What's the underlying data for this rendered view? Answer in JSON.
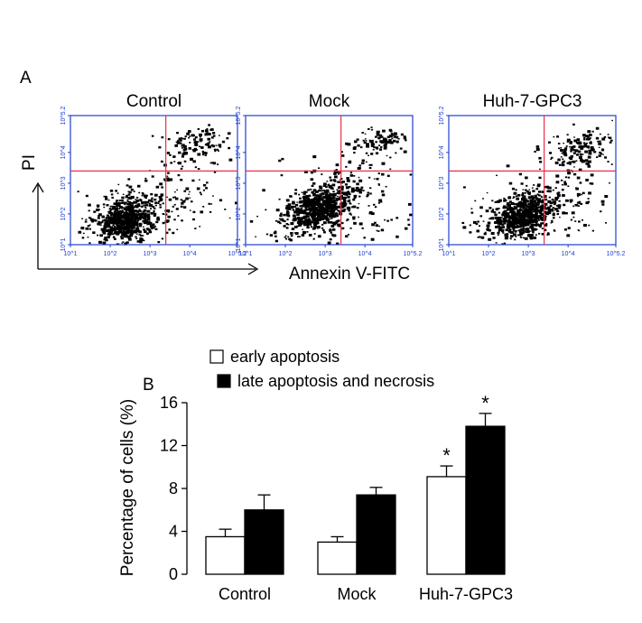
{
  "figure": {
    "panel_a_label": "A",
    "panel_b_label": "B",
    "flow_panels": [
      "Control",
      "Mock",
      "Huh-7-GPC3"
    ],
    "flow_x_label": "Annexin V-FITC",
    "flow_y_label": "PI",
    "flow_x_ticks": [
      "10^1",
      "10^2",
      "10^3",
      "10^4",
      "10^5.2"
    ],
    "flow_y_ticks": [
      "10^1",
      "10^2",
      "10^3",
      "10^4",
      "10^5.2"
    ],
    "colors": {
      "axes": "#1f3fd0",
      "quadrant": "#e8304a",
      "dots": "#000000"
    }
  },
  "chart_data": [
    {
      "type": "scatter",
      "description_panels": [
        "Control",
        "Mock",
        "Huh-7-GPC3"
      ],
      "x_scale": "log",
      "y_scale": "log",
      "xlabel": "Annexin V-FITC",
      "ylabel": "PI",
      "xlim": [
        "10^1",
        "10^5.2"
      ],
      "ylim": [
        "10^1",
        "10^5.2"
      ],
      "quadrant_gates": {
        "x": "10^3.4",
        "y": "10^3.4"
      }
    },
    {
      "type": "bar",
      "categories": [
        "Control",
        "Mock",
        "Huh-7-GPC3"
      ],
      "series": [
        {
          "name": "early apoptosis",
          "values": [
            3.5,
            3.0,
            9.1
          ],
          "errors": [
            0.7,
            0.5,
            1.0
          ],
          "fill": "#ffffff"
        },
        {
          "name": "late apoptosis and necrosis",
          "values": [
            6.0,
            7.4,
            13.8
          ],
          "errors": [
            1.4,
            0.7,
            1.2
          ],
          "fill": "#000000"
        }
      ],
      "ylabel": "Percentage of cells (%)",
      "ylim": [
        0,
        16
      ],
      "yticks": [
        "0",
        "4",
        "8",
        "12",
        "16"
      ],
      "significance": [
        "",
        "",
        "*"
      ],
      "legend": "top"
    }
  ]
}
